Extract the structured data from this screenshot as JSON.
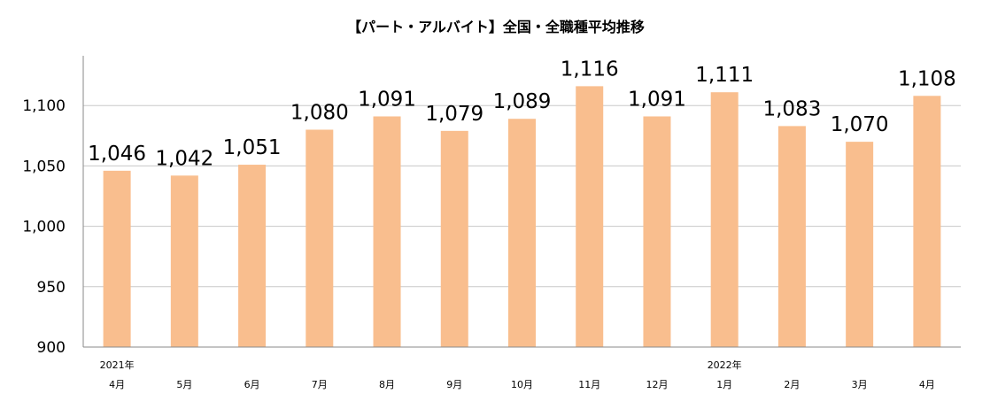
{
  "chart_data": {
    "type": "bar",
    "title": "【パート・アルバイト】全国・全職種平均推移",
    "categories": [
      "4月",
      "5月",
      "6月",
      "7月",
      "8月",
      "9月",
      "10月",
      "11月",
      "12月",
      "1月",
      "2月",
      "3月",
      "4月"
    ],
    "year_labels": [
      "2021年",
      "",
      "",
      "",
      "",
      "",
      "",
      "",
      "",
      "2022年",
      "",
      "",
      ""
    ],
    "values": [
      1046,
      1042,
      1051,
      1080,
      1091,
      1079,
      1089,
      1116,
      1091,
      1111,
      1083,
      1070,
      1108
    ],
    "data_labels": [
      "1,046",
      "1,042",
      "1,051",
      "1,080",
      "1,091",
      "1,079",
      "1,089",
      "1,116",
      "1,091",
      "1,111",
      "1,083",
      "1,070",
      "1,108"
    ],
    "yticks": [
      "900",
      "950",
      "1,000",
      "1,050",
      "1,100"
    ],
    "ylim": [
      900,
      1150
    ],
    "ytick_step": 50,
    "grid": true,
    "bar_color": "#f9be8e",
    "grid_color": "#c8c8c8"
  }
}
